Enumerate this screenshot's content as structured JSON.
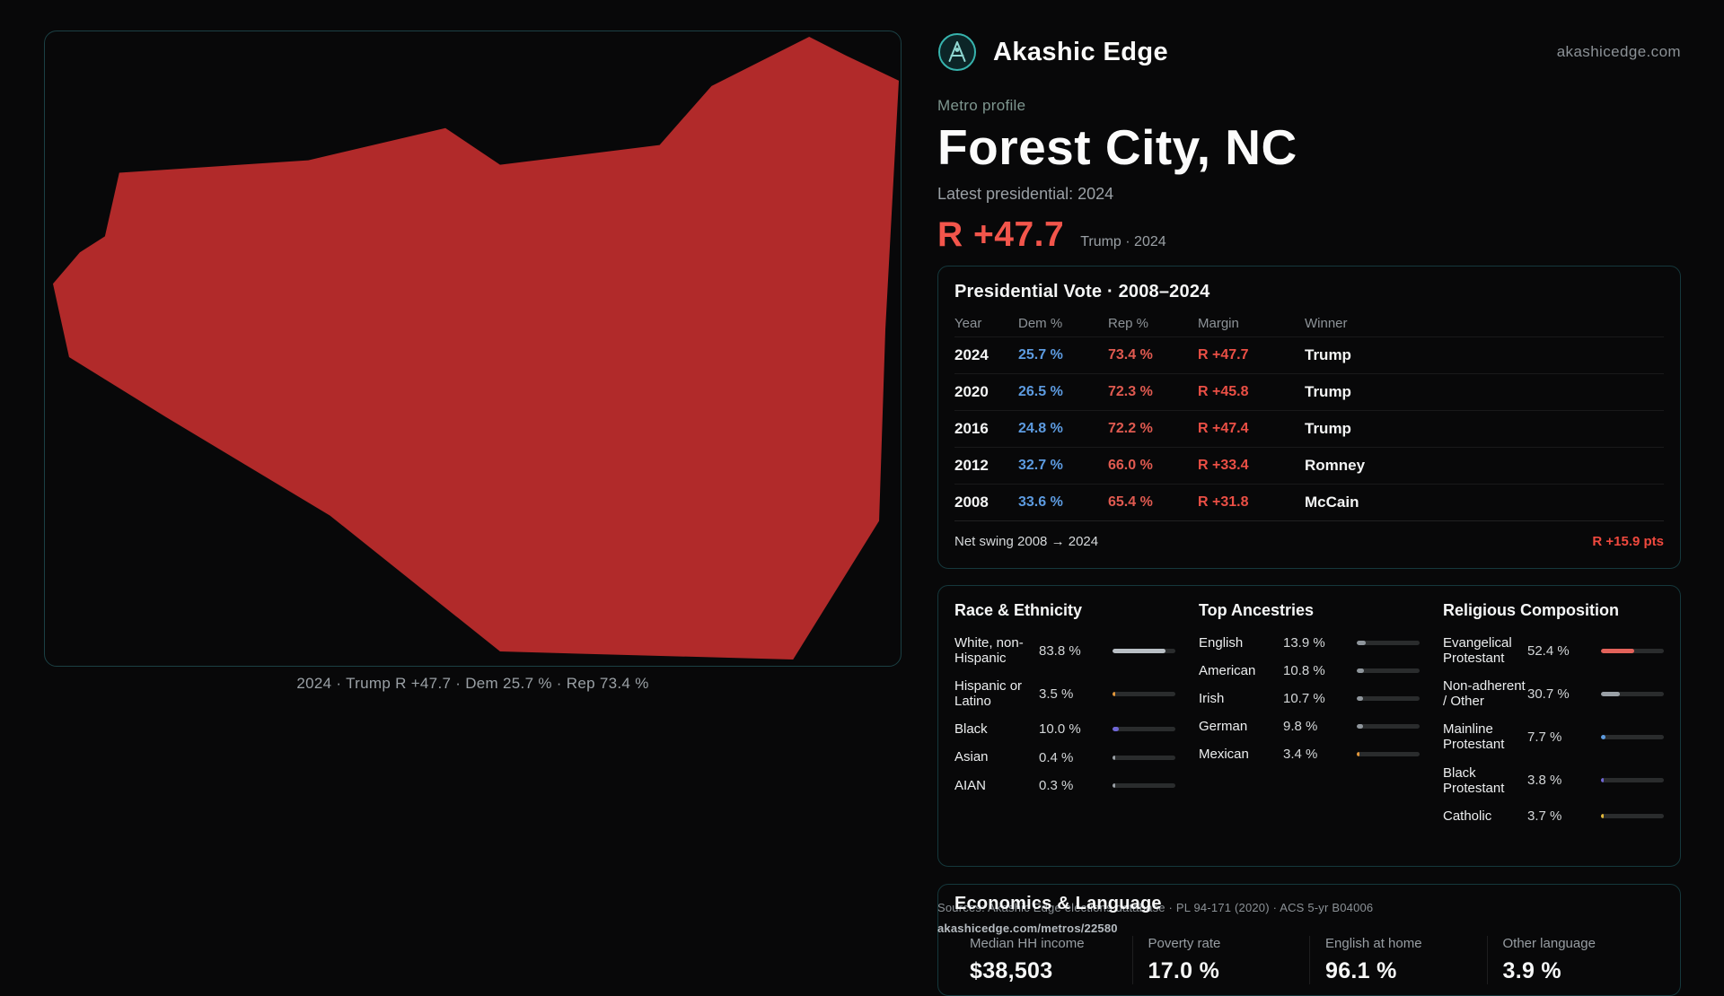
{
  "site": {
    "brand": "Akashic Edge",
    "domain": "akashicedge.com",
    "logo": "akashic-edge-logo"
  },
  "profile": {
    "kicker": "Metro profile",
    "title": "Forest City, NC",
    "latest_label": "Latest presidential: 2024",
    "headline_margin": "R +47.7",
    "headline_context": "Trump · 2024"
  },
  "map": {
    "caption": "2024 · Trump R +47.7 · Dem 25.7 % · Rep 73.4 %",
    "fill_color": "#b12a2a"
  },
  "presidential": {
    "title": "Presidential Vote · 2008–2024",
    "columns": {
      "year": "Year",
      "dem": "Dem %",
      "rep": "Rep %",
      "margin": "Margin",
      "winner": "Winner"
    },
    "rows": [
      {
        "year": "2024",
        "dem": "25.7 %",
        "rep": "73.4 %",
        "margin": "R +47.7",
        "winner": "Trump"
      },
      {
        "year": "2020",
        "dem": "26.5 %",
        "rep": "72.3 %",
        "margin": "R +45.8",
        "winner": "Trump"
      },
      {
        "year": "2016",
        "dem": "24.8 %",
        "rep": "72.2 %",
        "margin": "R +47.4",
        "winner": "Trump"
      },
      {
        "year": "2012",
        "dem": "32.7 %",
        "rep": "66.0 %",
        "margin": "R +33.4",
        "winner": "Romney"
      },
      {
        "year": "2008",
        "dem": "33.6 %",
        "rep": "65.4 %",
        "margin": "R +31.8",
        "winner": "McCain"
      }
    ],
    "net_swing_label": "Net swing 2008 → 2024",
    "net_swing_value": "R +15.9 pts"
  },
  "demographics": {
    "race": {
      "title": "Race & Ethnicity",
      "rows": [
        {
          "label": "White, non-Hispanic",
          "value": "83.8 %",
          "pct": 83.8,
          "color": "#b9bfc5"
        },
        {
          "label": "Hispanic or Latino",
          "value": "3.5 %",
          "pct": 3.5,
          "color": "#e3973a"
        },
        {
          "label": "Black",
          "value": "10.0 %",
          "pct": 10.0,
          "color": "#6f66d6"
        },
        {
          "label": "Asian",
          "value": "0.4 %",
          "pct": 0.4,
          "color": "#9aa0a6"
        },
        {
          "label": "AIAN",
          "value": "0.3 %",
          "pct": 0.3,
          "color": "#9aa0a6"
        }
      ]
    },
    "ancestries": {
      "title": "Top Ancestries",
      "rows": [
        {
          "label": "English",
          "value": "13.9 %",
          "pct": 13.9,
          "color": "#8f969c"
        },
        {
          "label": "American",
          "value": "10.8 %",
          "pct": 10.8,
          "color": "#8f969c"
        },
        {
          "label": "Irish",
          "value": "10.7 %",
          "pct": 10.7,
          "color": "#8f969c"
        },
        {
          "label": "German",
          "value": "9.8 %",
          "pct": 9.8,
          "color": "#8f969c"
        },
        {
          "label": "Mexican",
          "value": "3.4 %",
          "pct": 3.4,
          "color": "#e3973a"
        }
      ]
    },
    "religion": {
      "title": "Religious Composition",
      "rows": [
        {
          "label": "Evangelical Protestant",
          "value": "52.4 %",
          "pct": 52.4,
          "color": "#e2625a"
        },
        {
          "label": "Non-adherent / Other",
          "value": "30.7 %",
          "pct": 30.7,
          "color": "#9aa0a6"
        },
        {
          "label": "Mainline Protestant",
          "value": "7.7 %",
          "pct": 7.7,
          "color": "#5d9be0"
        },
        {
          "label": "Black Protestant",
          "value": "3.8 %",
          "pct": 3.8,
          "color": "#6f66d6"
        },
        {
          "label": "Catholic",
          "value": "3.7 %",
          "pct": 3.7,
          "color": "#e2b83a"
        }
      ]
    }
  },
  "economics": {
    "title": "Economics & Language",
    "stats": [
      {
        "label": "Median HH income",
        "value": "$38,503"
      },
      {
        "label": "Poverty rate",
        "value": "17.0 %"
      },
      {
        "label": "English at home",
        "value": "96.1 %"
      },
      {
        "label": "Other language",
        "value": "3.9 %"
      }
    ]
  },
  "footer": {
    "sources": "Sources: Akashic Edge elections database · PL 94-171 (2020) · ACS 5-yr B04006",
    "permalink": "akashicedge.com/metros/22580"
  }
}
